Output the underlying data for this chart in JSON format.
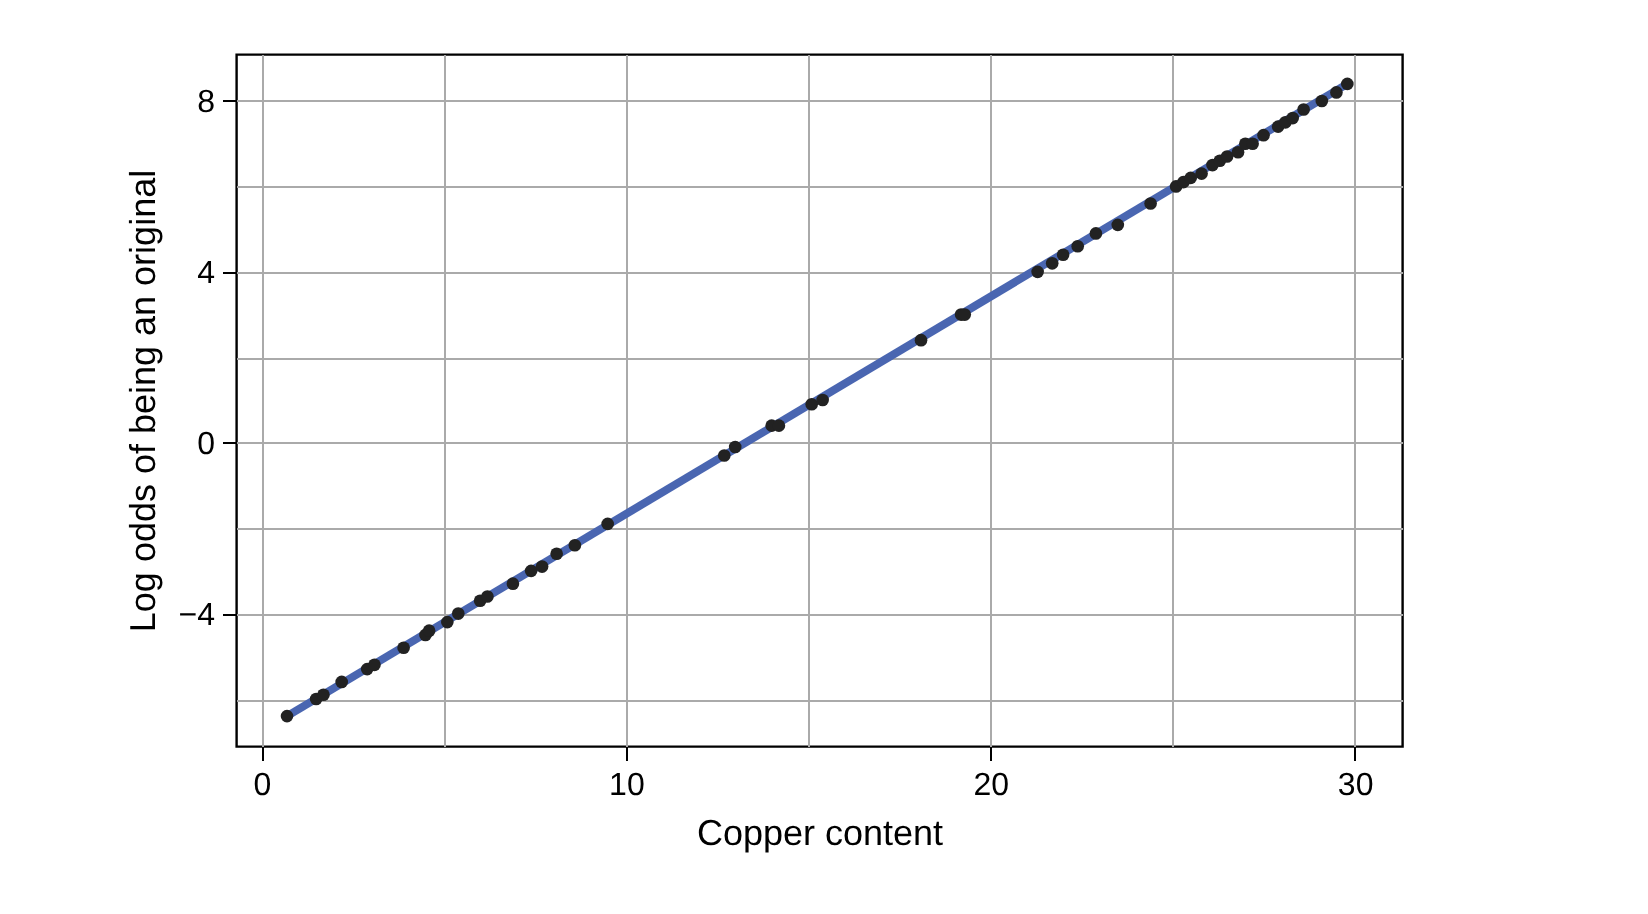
{
  "chart_data": {
    "type": "scatter",
    "xlabel": "Copper content",
    "ylabel": "Log odds of being an original",
    "xlim": [
      -0.7,
      31.3
    ],
    "ylim": [
      -7.1,
      9.1
    ],
    "xticks": [
      0,
      {
        "value": 5,
        "label": null
      },
      10,
      {
        "value": 15,
        "label": null
      },
      20,
      {
        "value": 25,
        "label": null
      },
      30
    ],
    "yticks": [
      {
        "value": -6,
        "label": null
      },
      {
        "value": -4,
        "label": "−4"
      },
      {
        "value": -2,
        "label": null
      },
      0,
      {
        "value": 2,
        "label": null
      },
      4,
      {
        "value": 6,
        "label": null
      },
      8
    ],
    "grid": true,
    "series": [
      {
        "type": "line",
        "marker": "none",
        "color": "#4a66b1",
        "x": [
          0.7,
          29.8
        ],
        "values": [
          -6.4,
          8.4
        ]
      },
      {
        "marker": "circle",
        "color": "#222222",
        "x": [
          0.7,
          1.5,
          1.7,
          2.2,
          2.9,
          3.1,
          3.9,
          4.5,
          4.6,
          5.1,
          5.4,
          6.0,
          6.2,
          6.9,
          7.4,
          7.7,
          8.1,
          8.6,
          9.5,
          12.7,
          13.0,
          14.0,
          14.2,
          15.1,
          15.4,
          18.1,
          19.2,
          19.3,
          21.3,
          21.7,
          22.0,
          22.4,
          22.9,
          23.5,
          24.4,
          25.1,
          25.3,
          25.5,
          25.8,
          26.1,
          26.3,
          26.5,
          26.8,
          27.0,
          27.2,
          27.5,
          27.9,
          28.1,
          28.3,
          28.6,
          29.1,
          29.5,
          29.8
        ],
        "values": [
          -6.4,
          -6.0,
          -5.9,
          -5.6,
          -5.3,
          -5.2,
          -4.8,
          -4.5,
          -4.4,
          -4.2,
          -4.0,
          -3.7,
          -3.6,
          -3.3,
          -3.0,
          -2.9,
          -2.6,
          -2.4,
          -1.9,
          -0.3,
          -0.1,
          0.4,
          0.4,
          0.9,
          1.0,
          2.4,
          3.0,
          3.0,
          4.0,
          4.2,
          4.4,
          4.6,
          4.9,
          5.1,
          5.6,
          6.0,
          6.1,
          6.2,
          6.3,
          6.5,
          6.6,
          6.7,
          6.8,
          7.0,
          7.0,
          7.2,
          7.4,
          7.5,
          7.6,
          7.8,
          8.0,
          8.2,
          8.4
        ]
      }
    ]
  }
}
